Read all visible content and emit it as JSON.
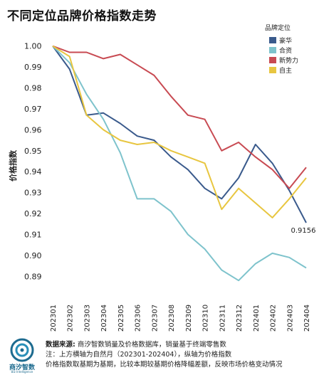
{
  "title": "不同定位品牌价格指数走势",
  "footer": {
    "source_label": "数据来源:",
    "source_text": "商汐智数销量及价格数据库，销量基于终端零售数",
    "note1": "注：上方横轴为自然月（202301-202404），纵轴为价格指数",
    "note2": "价格指数取基期为基期，比较本期较基期价格降幅差额，反映市场价格变动情况",
    "logo_text": "商汐智数",
    "logo_sub": "Biz Intelligence"
  },
  "colors": {
    "豪华": "#3a5a8c",
    "合资": "#7ec3cc",
    "新势力": "#c84a52",
    "自主": "#e8c640"
  },
  "chart_data": {
    "type": "line",
    "title": "不同定位品牌价格指数走势",
    "xlabel": "",
    "ylabel": "价格指数",
    "ylim": [
      0.885,
      1.005
    ],
    "yticks": [
      "1.00",
      "0.99",
      "0.98",
      "0.97",
      "0.96",
      "0.95",
      "0.94",
      "0.93",
      "0.92",
      "0.91",
      "0.90",
      "0.89"
    ],
    "legend_title": "品牌定位",
    "legend_position": "top-right",
    "grid": false,
    "x": [
      "202301",
      "202302",
      "202303",
      "202304",
      "202305",
      "202306",
      "202307",
      "202308",
      "202309",
      "202310",
      "202311",
      "202312",
      "202401",
      "202402",
      "202403",
      "202404"
    ],
    "series": [
      {
        "name": "豪华",
        "values": [
          1.0,
          0.989,
          0.967,
          0.968,
          0.963,
          0.957,
          0.955,
          0.947,
          0.941,
          0.932,
          0.927,
          0.937,
          0.953,
          0.944,
          0.931,
          0.9156
        ]
      },
      {
        "name": "合资",
        "values": [
          1.0,
          0.992,
          0.977,
          0.965,
          0.949,
          0.927,
          0.927,
          0.921,
          0.91,
          0.903,
          0.893,
          0.888,
          0.896,
          0.901,
          0.899,
          0.894
        ]
      },
      {
        "name": "新势力",
        "values": [
          1.0,
          0.997,
          0.997,
          0.994,
          0.996,
          0.991,
          0.986,
          0.976,
          0.967,
          0.965,
          0.95,
          0.954,
          0.947,
          0.941,
          0.932,
          0.942
        ]
      },
      {
        "name": "自主",
        "values": [
          1.0,
          0.995,
          0.967,
          0.96,
          0.955,
          0.953,
          0.954,
          0.95,
          0.947,
          0.944,
          0.922,
          0.932,
          0.925,
          0.918,
          0.927,
          0.937
        ]
      }
    ],
    "annotations": [
      {
        "series": "豪华",
        "x": "202404",
        "text": "0.9156"
      }
    ]
  }
}
